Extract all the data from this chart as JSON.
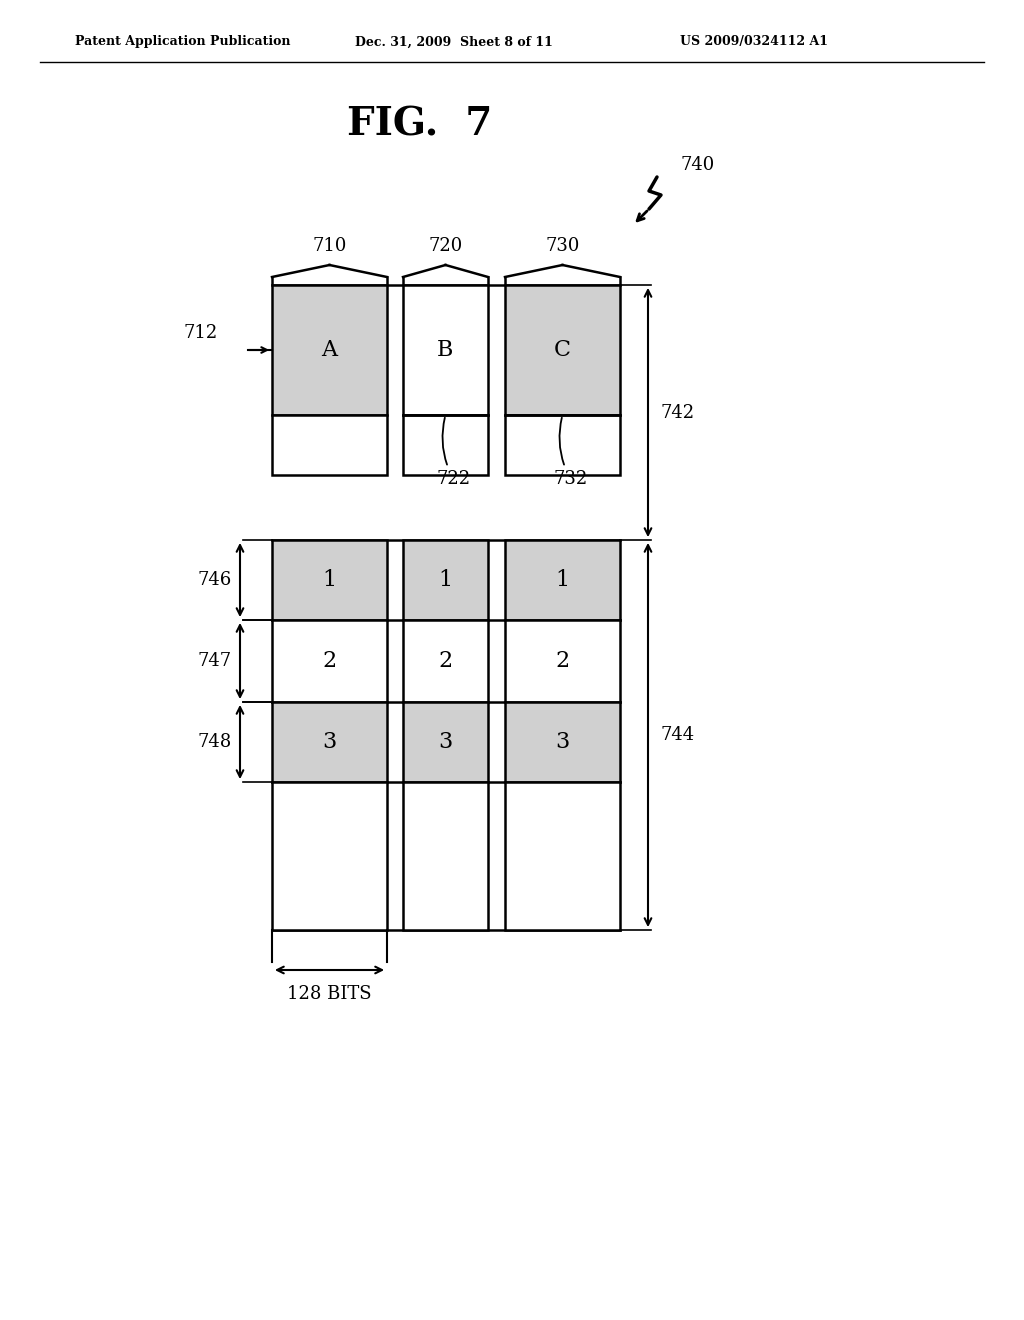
{
  "title": "FIG.  7",
  "header_text": "Patent Application Publication",
  "header_date": "Dec. 31, 2009  Sheet 8 of 11",
  "header_patent": "US 2009/0324112 A1",
  "bg_color": "#ffffff",
  "col_labels": [
    "710",
    "720",
    "730"
  ],
  "dot_color": "#d0d0d0",
  "border_color": "#000000"
}
